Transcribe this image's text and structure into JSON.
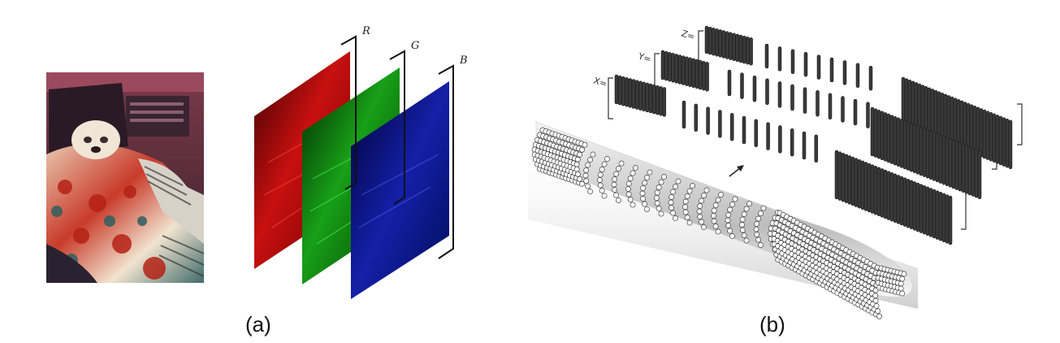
{
  "panel_a": {
    "caption": "(a)",
    "channels": [
      {
        "label": "R",
        "color": "#d01010"
      },
      {
        "label": "G",
        "color": "#10b010"
      },
      {
        "label": "B",
        "color": "#1020c0"
      }
    ]
  },
  "panel_b": {
    "caption": "(b)",
    "matrices": [
      {
        "label": "Z="
      },
      {
        "label": "Y="
      },
      {
        "label": "X="
      }
    ]
  }
}
